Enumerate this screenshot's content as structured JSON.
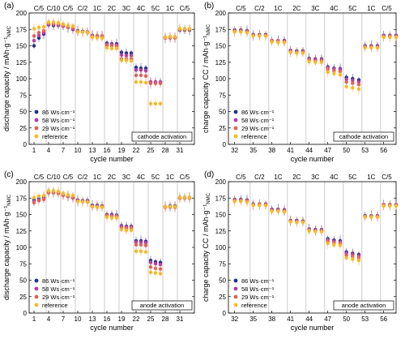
{
  "colors": {
    "s86": "#1f2f86",
    "s58": "#b23da6",
    "s29": "#e0605a",
    "ref": "#f7b928",
    "sep": "#b5b5b5"
  },
  "chart_data": [
    {
      "panel_label": "(a)",
      "type": "scatter",
      "xlabel": "cycle number",
      "ylabel": "discharge capacity / mAh·g⁻¹NMC",
      "ylim": [
        0,
        200
      ],
      "yticks": [
        "0",
        "25",
        "50",
        "75",
        "100",
        "125",
        "150",
        "175",
        "200"
      ],
      "xlim": [
        0,
        34
      ],
      "xticks": [
        "1",
        "4",
        "7",
        "10",
        "13",
        "16",
        "19",
        "22",
        "25",
        "28",
        "31"
      ],
      "rates": [
        "C/5",
        "C/10",
        "C/5",
        "C/2",
        "1C",
        "2C",
        "3C",
        "4C",
        "5C",
        "1C",
        "C/5"
      ],
      "rate_separators": [
        3.5,
        6.5,
        9.5,
        12.5,
        15.5,
        18.5,
        21.5,
        24.5,
        27.5,
        30.5
      ],
      "annotation": "cathode activation",
      "legend_placement": "bottom-left",
      "x_start": 1,
      "series": [
        {
          "name": "86 Ws·cm⁻¹",
          "color_key": "s86",
          "values": [
            150,
            162,
            168,
            182,
            181,
            181,
            180,
            178,
            175,
            173,
            172,
            171,
            166,
            165,
            165,
            154,
            153,
            153,
            140,
            139,
            139,
            117,
            116,
            116,
            95,
            95,
            95,
            162,
            163,
            163,
            174,
            174,
            174
          ]
        },
        {
          "name": "58 Ws·cm⁻¹",
          "color_key": "s58",
          "values": [
            158,
            166,
            170,
            183,
            183,
            182,
            180,
            178,
            176,
            172,
            171,
            170,
            165,
            165,
            164,
            152,
            152,
            151,
            136,
            135,
            135,
            113,
            113,
            112,
            95,
            95,
            95,
            163,
            163,
            163,
            175,
            175,
            175
          ]
        },
        {
          "name": "29 Ws·cm⁻¹",
          "color_key": "s29",
          "values": [
            165,
            170,
            173,
            184,
            184,
            183,
            181,
            179,
            177,
            172,
            171,
            171,
            165,
            165,
            165,
            150,
            150,
            149,
            130,
            130,
            130,
            105,
            105,
            104,
            93,
            93,
            93,
            162,
            162,
            162,
            175,
            175,
            175
          ]
        },
        {
          "name": "reference",
          "color_key": "ref",
          "values": [
            176,
            178,
            179,
            186,
            186,
            185,
            183,
            181,
            180,
            171,
            171,
            170,
            163,
            162,
            162,
            147,
            146,
            146,
            128,
            128,
            127,
            95,
            95,
            94,
            62,
            62,
            62,
            163,
            164,
            164,
            176,
            176,
            176
          ]
        }
      ]
    },
    {
      "panel_label": "(b)",
      "type": "scatter",
      "xlabel": "cycle number",
      "ylabel": "charge capacity CC / mAh·g⁻¹NMC",
      "ylim": [
        0,
        200
      ],
      "yticks": [
        "0",
        "25",
        "50",
        "75",
        "100",
        "125",
        "150",
        "175",
        "200"
      ],
      "xlim": [
        31,
        58
      ],
      "xticks": [
        "32",
        "35",
        "38",
        "41",
        "44",
        "47",
        "50",
        "53",
        "56"
      ],
      "rates": [
        "C/5",
        "C/2",
        "1C",
        "2C",
        "3C",
        "4C",
        "5C",
        "1C",
        "C/5"
      ],
      "rate_separators": [
        34.5,
        37.5,
        40.5,
        43.5,
        46.5,
        49.5,
        52.5,
        55.5
      ],
      "annotation": "cathode activation",
      "legend_placement": "bottom-left",
      "x_start": 32,
      "series": [
        {
          "name": "86 Ws·cm⁻¹",
          "color_key": "s86",
          "values": [
            174,
            174,
            173,
            167,
            167,
            167,
            158,
            158,
            158,
            143,
            142,
            142,
            131,
            130,
            130,
            118,
            116,
            115,
            102,
            100,
            98,
            150,
            150,
            150,
            166,
            166,
            166
          ]
        },
        {
          "name": "58 Ws·cm⁻¹",
          "color_key": "s58",
          "values": [
            173,
            173,
            172,
            166,
            166,
            166,
            158,
            158,
            157,
            142,
            141,
            141,
            130,
            129,
            129,
            117,
            115,
            114,
            99,
            97,
            95,
            149,
            149,
            149,
            165,
            165,
            165
          ]
        },
        {
          "name": "29 Ws·cm⁻¹",
          "color_key": "s29",
          "values": [
            172,
            172,
            171,
            166,
            166,
            165,
            157,
            157,
            156,
            141,
            140,
            140,
            128,
            127,
            127,
            114,
            112,
            111,
            95,
            93,
            91,
            148,
            148,
            148,
            164,
            164,
            164
          ]
        },
        {
          "name": "reference",
          "color_key": "ref",
          "values": [
            171,
            171,
            170,
            165,
            165,
            165,
            156,
            155,
            155,
            140,
            139,
            139,
            126,
            125,
            125,
            110,
            108,
            106,
            88,
            86,
            84,
            147,
            147,
            147,
            163,
            163,
            163
          ]
        }
      ]
    },
    {
      "panel_label": "(c)",
      "type": "scatter",
      "xlabel": "cycle number",
      "ylabel": "discharge capacity / mAh·g⁻¹NMC",
      "ylim": [
        0,
        200
      ],
      "yticks": [
        "0",
        "25",
        "50",
        "75",
        "100",
        "125",
        "150",
        "175",
        "200"
      ],
      "xlim": [
        0,
        34
      ],
      "xticks": [
        "1",
        "4",
        "7",
        "10",
        "13",
        "16",
        "19",
        "22",
        "25",
        "28",
        "31"
      ],
      "rates": [
        "C/5",
        "C/10",
        "C/5",
        "C/2",
        "1C",
        "2C",
        "3C",
        "4C",
        "5C",
        "1C",
        "C/5"
      ],
      "rate_separators": [
        3.5,
        6.5,
        9.5,
        12.5,
        15.5,
        18.5,
        21.5,
        24.5,
        27.5,
        30.5
      ],
      "annotation": "anode activation",
      "legend_placement": "bottom-left",
      "x_start": 1,
      "series": [
        {
          "name": "86 Ws·cm⁻¹",
          "color_key": "s86",
          "values": [
            172,
            174,
            176,
            184,
            184,
            183,
            180,
            178,
            176,
            172,
            171,
            171,
            164,
            164,
            163,
            150,
            150,
            149,
            133,
            132,
            132,
            110,
            110,
            109,
            80,
            78,
            77,
            162,
            163,
            163,
            176,
            176,
            176
          ]
        },
        {
          "name": "58 Ws·cm⁻¹",
          "color_key": "s58",
          "values": [
            170,
            172,
            174,
            184,
            184,
            183,
            180,
            178,
            176,
            171,
            170,
            170,
            163,
            163,
            162,
            149,
            149,
            148,
            132,
            131,
            131,
            108,
            108,
            107,
            77,
            75,
            74,
            162,
            162,
            162,
            175,
            175,
            175
          ]
        },
        {
          "name": "29 Ws·cm⁻¹",
          "color_key": "s29",
          "values": [
            168,
            171,
            173,
            183,
            183,
            182,
            179,
            177,
            175,
            170,
            170,
            169,
            162,
            162,
            162,
            148,
            147,
            147,
            130,
            129,
            129,
            104,
            104,
            103,
            70,
            68,
            67,
            161,
            161,
            161,
            175,
            175,
            175
          ]
        },
        {
          "name": "reference",
          "color_key": "ref",
          "values": [
            176,
            178,
            179,
            186,
            186,
            185,
            182,
            180,
            179,
            170,
            169,
            169,
            162,
            161,
            161,
            146,
            145,
            145,
            127,
            126,
            126,
            94,
            94,
            93,
            62,
            61,
            60,
            162,
            162,
            162,
            176,
            176,
            176
          ]
        }
      ]
    },
    {
      "panel_label": "(d)",
      "type": "scatter",
      "xlabel": "cycle number",
      "ylabel": "charge capacity CC / mAh·g⁻¹NMC",
      "ylim": [
        0,
        200
      ],
      "yticks": [
        "0",
        "25",
        "50",
        "75",
        "100",
        "125",
        "150",
        "175",
        "200"
      ],
      "xlim": [
        31,
        58
      ],
      "xticks": [
        "32",
        "35",
        "38",
        "41",
        "44",
        "47",
        "50",
        "53",
        "56"
      ],
      "rates": [
        "C/5",
        "C/2",
        "1C",
        "2C",
        "3C",
        "4C",
        "5C",
        "1C",
        "C/5"
      ],
      "rate_separators": [
        34.5,
        37.5,
        40.5,
        43.5,
        46.5,
        49.5,
        52.5,
        55.5
      ],
      "annotation": "anode activation",
      "legend_placement": "bottom-left",
      "x_start": 32,
      "series": [
        {
          "name": "86 Ws·cm⁻¹",
          "color_key": "s86",
          "values": [
            173,
            173,
            172,
            166,
            166,
            166,
            158,
            158,
            157,
            141,
            141,
            140,
            128,
            127,
            127,
            113,
            111,
            110,
            93,
            91,
            89,
            148,
            148,
            148,
            165,
            165,
            165
          ]
        },
        {
          "name": "58 Ws·cm⁻¹",
          "color_key": "s58",
          "values": [
            172,
            172,
            171,
            165,
            165,
            165,
            157,
            157,
            156,
            140,
            140,
            139,
            127,
            126,
            126,
            111,
            109,
            108,
            91,
            89,
            87,
            147,
            147,
            147,
            165,
            165,
            165
          ]
        },
        {
          "name": "29 Ws·cm⁻¹",
          "color_key": "s29",
          "values": [
            171,
            171,
            170,
            165,
            165,
            164,
            156,
            156,
            155,
            140,
            139,
            139,
            126,
            125,
            125,
            109,
            107,
            106,
            88,
            86,
            84,
            147,
            147,
            147,
            164,
            164,
            164
          ]
        },
        {
          "name": "reference",
          "color_key": "ref",
          "values": [
            170,
            170,
            169,
            164,
            164,
            164,
            155,
            155,
            154,
            139,
            138,
            138,
            125,
            124,
            124,
            106,
            104,
            103,
            84,
            82,
            80,
            146,
            146,
            146,
            163,
            163,
            163
          ]
        }
      ]
    }
  ]
}
